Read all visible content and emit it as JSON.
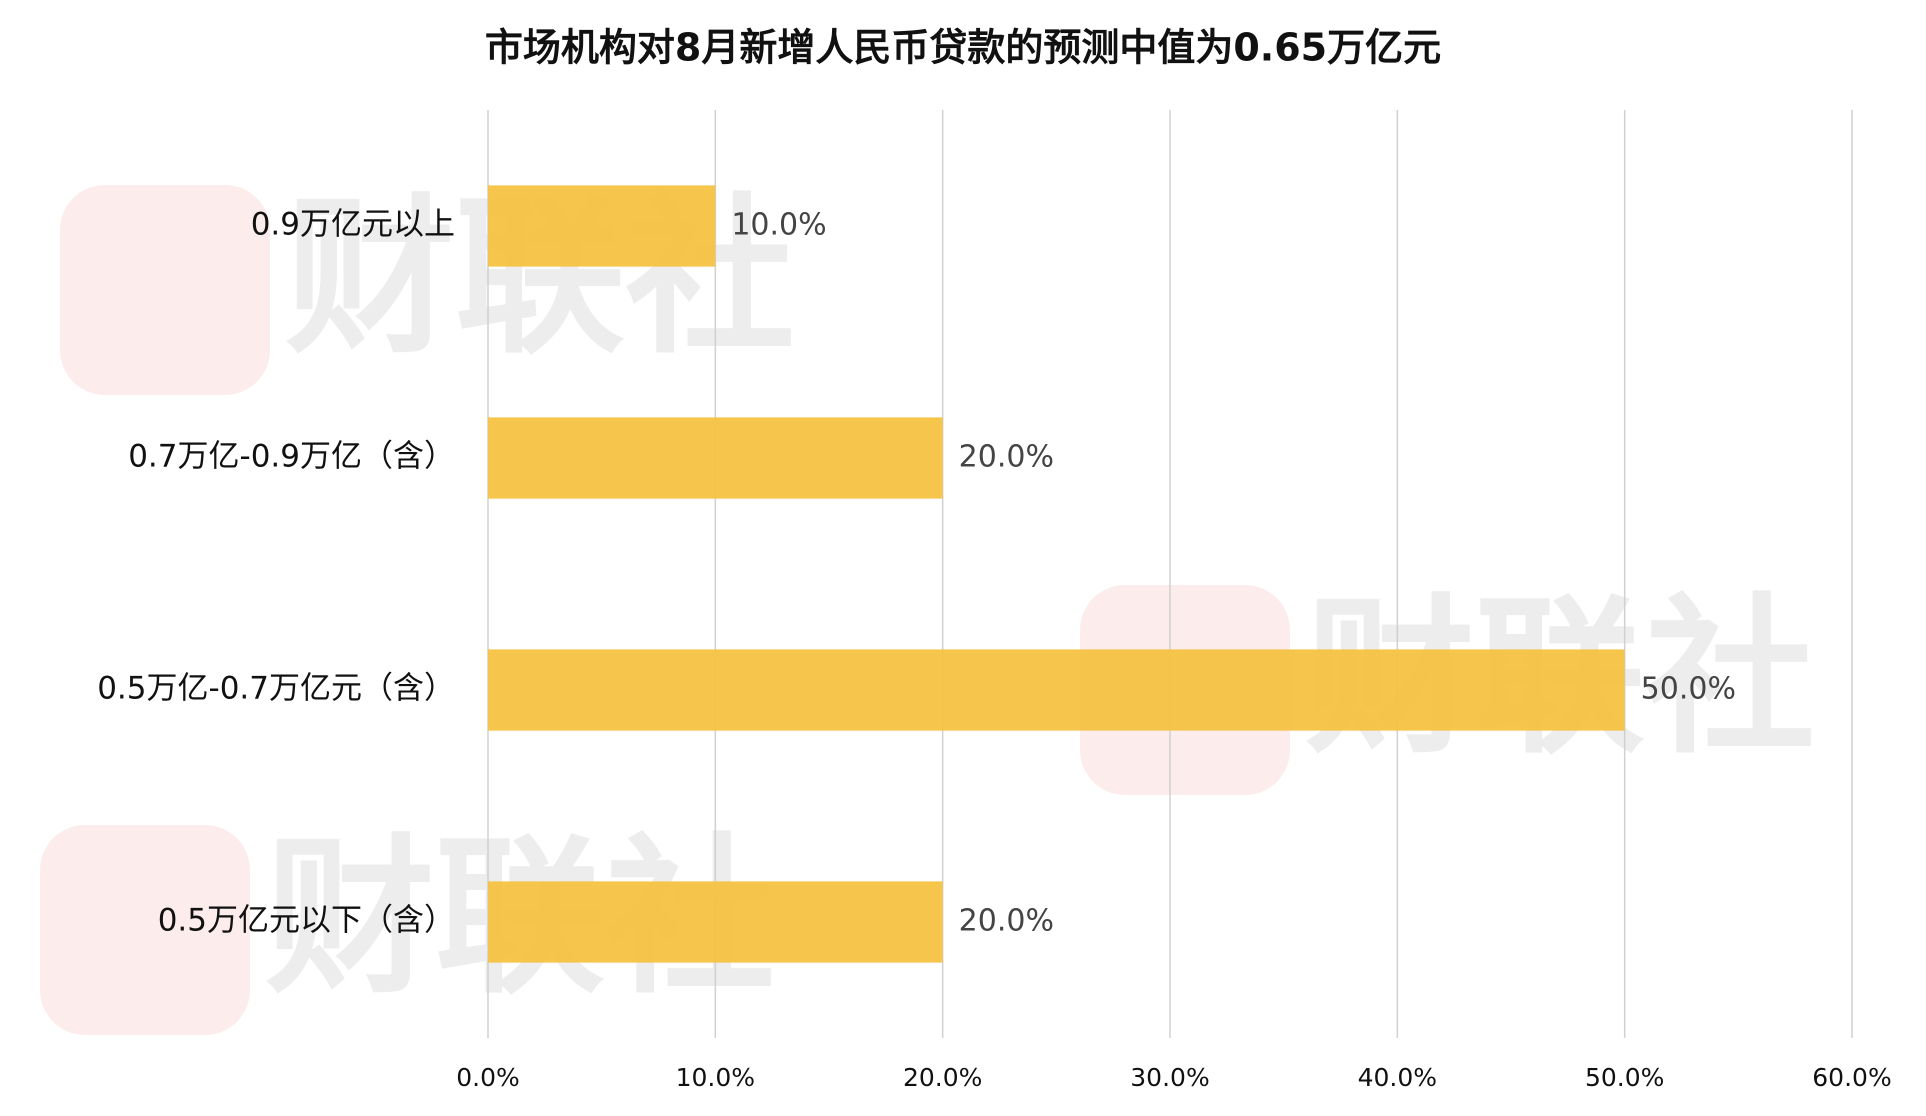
{
  "chart_data": {
    "type": "bar",
    "orientation": "horizontal",
    "title": "市场机构对8月新增人民币贷款的预测中值为0.65万亿元",
    "watermark": "财联社",
    "categories": [
      "0.9万亿元以上",
      "0.7万亿-0.9万亿（含）",
      "0.5万亿-0.7万亿元（含）",
      "0.5万亿元以下（含）"
    ],
    "values": [
      10,
      20,
      50,
      20
    ],
    "value_labels": [
      "10.0%",
      "20.0%",
      "50.0%",
      "20.0%"
    ],
    "color": "#f4c242",
    "xlim": [
      0,
      60
    ],
    "xticks": [
      {
        "value": 0,
        "label": "0.0%"
      },
      {
        "value": 10,
        "label": "10.0%"
      },
      {
        "value": 20,
        "label": "20.0%"
      },
      {
        "value": 30,
        "label": "30.0%"
      },
      {
        "value": 40,
        "label": "40.0%"
      },
      {
        "value": 50,
        "label": "50.0%"
      },
      {
        "value": 60,
        "label": "60.0%"
      }
    ],
    "grid": true
  }
}
